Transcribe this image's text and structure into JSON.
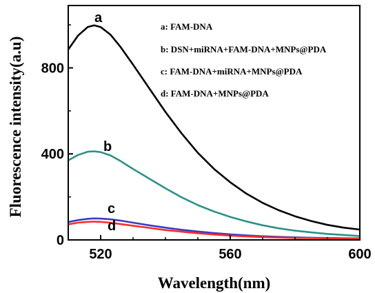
{
  "chart_data": {
    "type": "line",
    "xlabel": "Wavelength(nm)",
    "ylabel": "Fluorescence intensity(a.u)",
    "xlim": [
      510,
      600
    ],
    "ylim": [
      0,
      1090
    ],
    "xticks": [
      520,
      560,
      600
    ],
    "yticks": [
      0,
      400,
      800
    ],
    "grid": false,
    "legend_position": "top-right",
    "legend": [
      "a: FAM-DNA",
      "b: DSN+miRNA+FAM-DNA+MNPs@PDA",
      "c: FAM-DNA+miRNA+MNPs@PDA",
      "d: FAM-DNA+MNPs@PDA"
    ],
    "x": [
      510,
      513,
      516,
      518,
      520,
      523,
      526,
      530,
      535,
      540,
      545,
      550,
      555,
      560,
      565,
      570,
      575,
      580,
      585,
      590,
      595,
      600
    ],
    "series": [
      {
        "label": "a",
        "color": "#000000",
        "values": [
          885,
          950,
          990,
          998,
          990,
          955,
          900,
          815,
          705,
          595,
          495,
          405,
          330,
          268,
          215,
          172,
          138,
          110,
          88,
          70,
          57,
          48
        ]
      },
      {
        "label": "b",
        "color": "#2a9186",
        "values": [
          370,
          395,
          410,
          412,
          408,
          393,
          368,
          330,
          285,
          240,
          198,
          162,
          132,
          107,
          86,
          68,
          54,
          43,
          35,
          28,
          23,
          18
        ]
      },
      {
        "label": "c",
        "color": "#3b3bc0",
        "values": [
          83,
          92,
          98,
          100,
          99,
          96,
          90,
          80,
          68,
          57,
          47,
          39,
          32,
          26,
          21,
          17,
          14,
          12,
          10,
          9,
          8,
          7
        ]
      },
      {
        "label": "d",
        "color": "#ff2a2a",
        "values": [
          72,
          80,
          84,
          85,
          84,
          80,
          74,
          66,
          56,
          46,
          38,
          31,
          25,
          20,
          16,
          13,
          11,
          9,
          8,
          7,
          6,
          5
        ]
      }
    ]
  }
}
